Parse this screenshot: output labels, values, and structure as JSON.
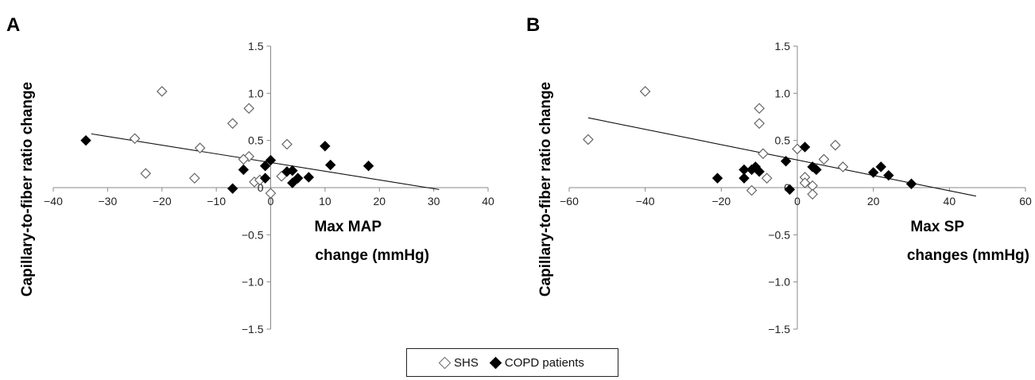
{
  "chart_data": [
    {
      "type": "scatter",
      "panel": "A",
      "xlabel": [
        "Max MAP",
        "change (mmHg)"
      ],
      "ylabel": "Capillary-to-fiber ratio change",
      "xlim": [
        -40,
        40
      ],
      "ylim": [
        -1.5,
        1.5
      ],
      "xticks": [
        "−40",
        "−30",
        "−20",
        "−10",
        "0",
        "10",
        "20",
        "30",
        "40"
      ],
      "yticks": [
        "1.5",
        "1.0",
        "0.5",
        "0",
        "−0.5",
        "−1.0",
        "−1.5"
      ],
      "trendline": {
        "x": [
          -33,
          31
        ],
        "y": [
          0.57,
          -0.02
        ]
      },
      "series": [
        {
          "name": "SHS",
          "marker": "open-diamond",
          "color": "#666666",
          "x": [
            -20,
            -25,
            -23,
            -13,
            -14,
            -7,
            -4,
            -4,
            -5,
            -3,
            3,
            -2,
            2,
            0
          ],
          "y": [
            1.02,
            0.52,
            0.15,
            0.42,
            0.1,
            0.68,
            0.84,
            0.33,
            0.3,
            0.06,
            0.46,
            0.08,
            0.12,
            -0.06
          ]
        },
        {
          "name": "COPD patients",
          "marker": "filled-diamond",
          "color": "#000000",
          "x": [
            -34,
            -7,
            -5,
            -1,
            -1,
            0,
            3,
            4,
            4,
            5,
            7,
            10,
            11,
            18
          ],
          "y": [
            0.5,
            -0.01,
            0.19,
            0.23,
            0.1,
            0.29,
            0.17,
            0.05,
            0.18,
            0.1,
            0.11,
            0.44,
            0.24,
            0.23
          ]
        }
      ]
    },
    {
      "type": "scatter",
      "panel": "B",
      "xlabel": [
        "Max SP",
        "changes (mmHg)"
      ],
      "ylabel": "Capillary-to-fiber ratio change",
      "xlim": [
        -60,
        60
      ],
      "ylim": [
        -1.5,
        1.5
      ],
      "xticks": [
        "−60",
        "−40",
        "−20",
        "0",
        "20",
        "40",
        "60"
      ],
      "yticks": [
        "1.5",
        "1.0",
        "0.5",
        "0",
        "−0.5",
        "−1.0",
        "−1.5"
      ],
      "trendline": {
        "x": [
          -55,
          47
        ],
        "y": [
          0.74,
          -0.09
        ]
      },
      "series": [
        {
          "name": "SHS",
          "marker": "open-diamond",
          "color": "#666666",
          "x": [
            -55,
            -40,
            -10,
            -10,
            -12,
            -9,
            -8,
            0,
            2,
            2,
            4,
            4,
            7,
            10,
            12
          ],
          "y": [
            0.51,
            1.02,
            0.84,
            0.68,
            -0.03,
            0.36,
            0.1,
            0.41,
            0.11,
            0.05,
            0.02,
            -0.07,
            0.3,
            0.45,
            0.22
          ]
        },
        {
          "name": "COPD patients",
          "marker": "filled-diamond",
          "color": "#000000",
          "x": [
            -21,
            -14,
            -14,
            -12,
            -11,
            -10,
            -3,
            -2,
            2,
            4,
            5,
            20,
            22,
            24,
            30
          ],
          "y": [
            0.1,
            0.19,
            0.1,
            0.19,
            0.22,
            0.17,
            0.28,
            -0.02,
            0.43,
            0.22,
            0.19,
            0.16,
            0.22,
            0.13,
            0.04
          ]
        }
      ]
    }
  ],
  "legend": {
    "position": "bottom-center",
    "items": [
      {
        "label": "SHS",
        "marker": "open-diamond"
      },
      {
        "label": "COPD patients",
        "marker": "filled-diamond"
      }
    ]
  }
}
